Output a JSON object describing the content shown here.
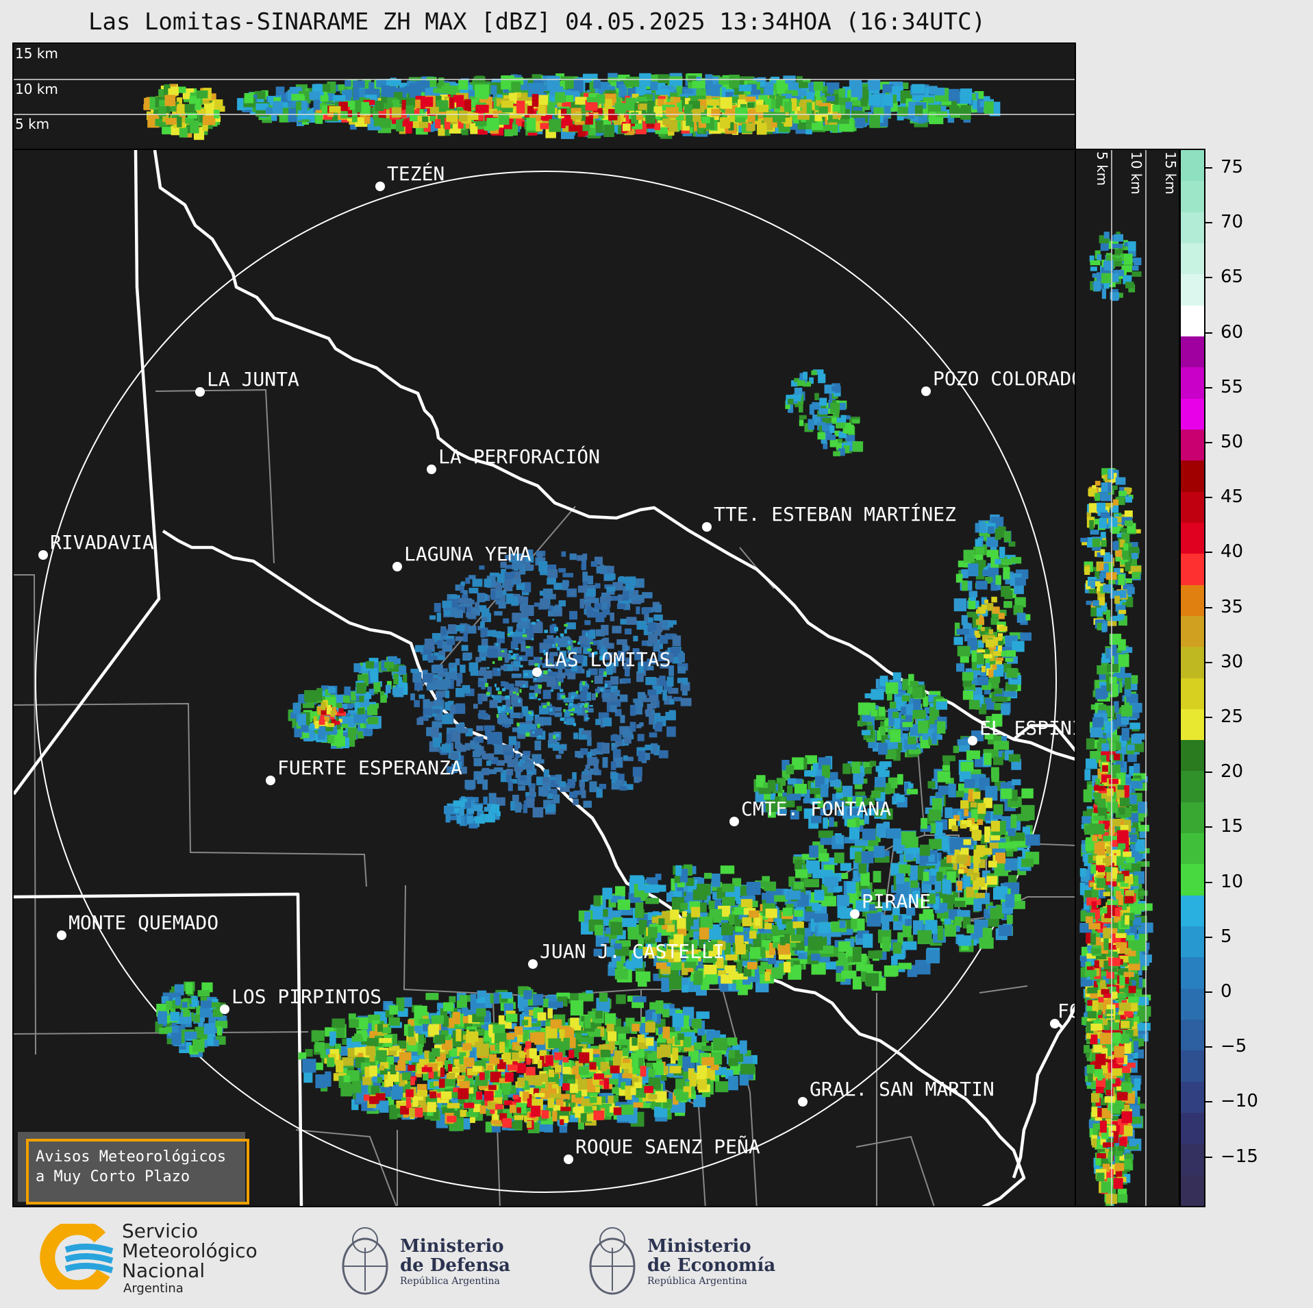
{
  "title": "Las Lomitas-SINARAME ZH MAX [dBZ] 04.05.2025 13:34HOA (16:34UTC)",
  "top_panel": {
    "altitude_labels": [
      "15 km",
      "10 km",
      "5 km"
    ]
  },
  "side_panel": {
    "altitude_labels": [
      "5 km",
      "10 km",
      "15 km"
    ]
  },
  "cities": [
    {
      "name": "TEZÉN"
    },
    {
      "name": "LA JUNTA"
    },
    {
      "name": "POZO COLORADO"
    },
    {
      "name": "LA PERFORACIÓN"
    },
    {
      "name": "TTE. ESTEBAN MARTÍNEZ"
    },
    {
      "name": "RIVADAVIA"
    },
    {
      "name": "LAGUNA YEMA"
    },
    {
      "name": "LAS LOMITAS"
    },
    {
      "name": "EL ESPINILLO"
    },
    {
      "name": "FUERTE ESPERANZA"
    },
    {
      "name": "CMTE. FONTANA"
    },
    {
      "name": "PIRANE"
    },
    {
      "name": "MONTE QUEMADO"
    },
    {
      "name": "JUAN J. CASTELLI"
    },
    {
      "name": "LOS PIRPINTOS"
    },
    {
      "name": "GRAL. SAN MARTIN"
    },
    {
      "name": "ROQUE SAENZ PEÑA"
    },
    {
      "name": "FO"
    }
  ],
  "colorbar": {
    "ticks": [
      "75",
      "70",
      "65",
      "60",
      "55",
      "50",
      "45",
      "40",
      "35",
      "30",
      "25",
      "20",
      "15",
      "10",
      "5",
      "0",
      "−5",
      "−10",
      "−15"
    ],
    "colors_high_to_low": [
      "#8ee0c0",
      "#9ee6c8",
      "#b2ecd6",
      "#c8f2e2",
      "#dcf8ee",
      "#ffffff",
      "#a000a0",
      "#c800c8",
      "#e800e8",
      "#c80070",
      "#a00000",
      "#c00010",
      "#e00020",
      "#ff3030",
      "#e08010",
      "#d0a020",
      "#c0b820",
      "#d8d020",
      "#e8e830",
      "#2a7a20",
      "#30902a",
      "#38a832",
      "#40c03a",
      "#48d840",
      "#2ab0e0",
      "#2898d0",
      "#2880c0",
      "#2a70b0",
      "#2c60a0",
      "#2e5090",
      "#304080",
      "#323470",
      "#343060",
      "#363058"
    ]
  },
  "warning_box": {
    "line1": "Avisos Meteorológicos",
    "line2": "a Muy Corto Plazo",
    "border_color": "#f0a000"
  },
  "logos": {
    "smn": {
      "line1": "Servicio",
      "line2": "Meteorológico",
      "line3": "Nacional",
      "line4": "Argentina"
    },
    "defensa": {
      "line1": "Ministerio",
      "line2": "de Defensa",
      "line3": "República Argentina"
    },
    "economia": {
      "line1": "Ministerio",
      "line2": "de Economía",
      "line3": "República Argentina"
    }
  }
}
